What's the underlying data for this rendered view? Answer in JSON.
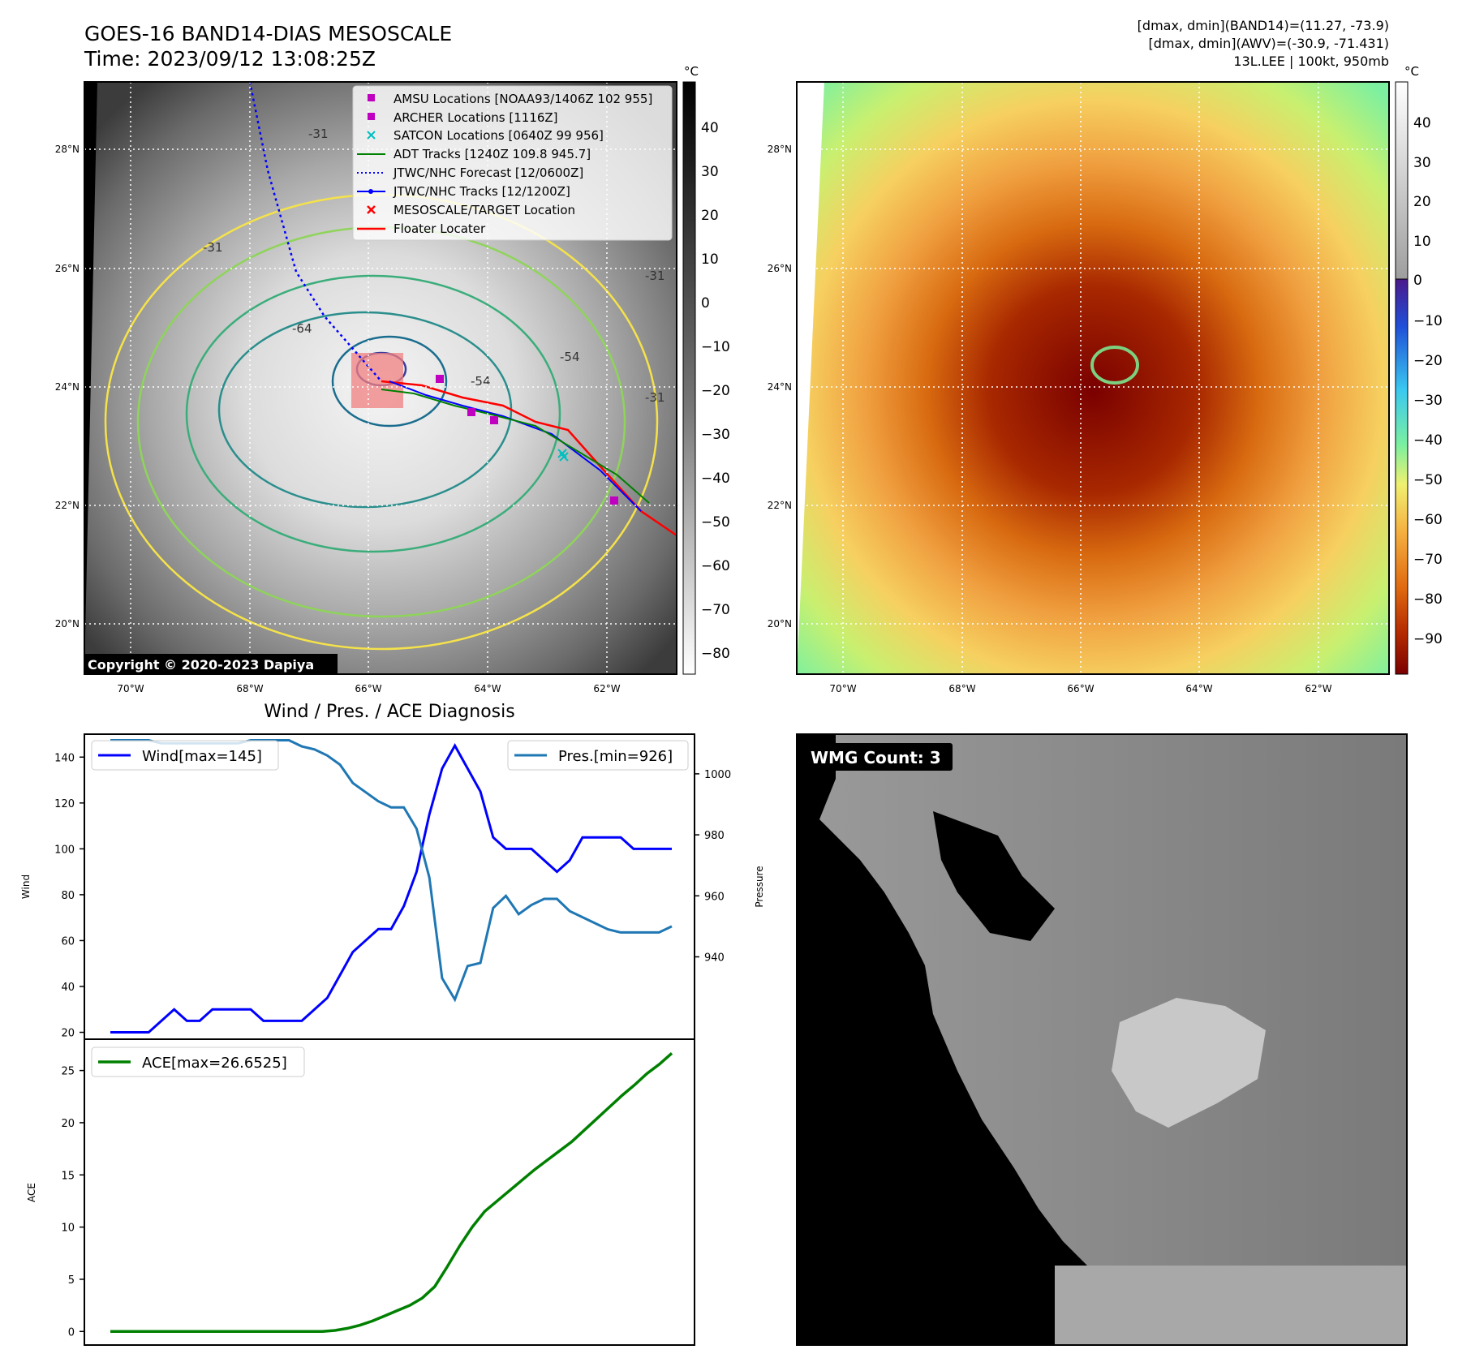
{
  "header": {
    "title_line1": "GOES-16 BAND14-DIAS MESOSCALE",
    "title_line2": "Time: 2023/09/12 13:08:25Z",
    "info_line1": "[dmax, dmin](BAND14)=(11.27, -73.9)",
    "info_line2": "[dmax, dmin](AWV)=(-30.9, -71.431)",
    "info_line3": "13L.LEE | 100kt, 950mb"
  },
  "map_axes": {
    "lon_ticks": [
      "70°W",
      "68°W",
      "66°W",
      "64°W",
      "62°W"
    ],
    "lat_ticks": [
      "28°N",
      "26°N",
      "24°N",
      "22°N",
      "20°N"
    ]
  },
  "ir_panel": {
    "copyright": "Copyright © 2020-2023 Dapiya",
    "colorbar_unit": "°C",
    "colorbar_ticks": [
      "40",
      "30",
      "20",
      "10",
      "0",
      "−10",
      "−20",
      "−30",
      "−40",
      "−50",
      "−60",
      "−70",
      "−80"
    ],
    "contour_labels": [
      "-31",
      "-31",
      "-31",
      "-31",
      "-54",
      "-54",
      "-64"
    ],
    "legend": [
      {
        "label": "AMSU Locations [NOAA93/1406Z 102 955]",
        "color": "#c000c0",
        "marker": "square"
      },
      {
        "label": "ARCHER Locations [1116Z]",
        "color": "#c000c0",
        "marker": "square"
      },
      {
        "label": "SATCON Locations [0640Z 99 956]",
        "color": "#00c0c0",
        "marker": "x"
      },
      {
        "label": "ADT Tracks [1240Z 109.8 945.7]",
        "color": "#008000",
        "marker": "line"
      },
      {
        "label": "JTWC/NHC Forecast [12/0600Z]",
        "color": "#0000ff",
        "marker": "dotted"
      },
      {
        "label": "JTWC/NHC Tracks [12/1200Z]",
        "color": "#0000ff",
        "marker": "line-dot"
      },
      {
        "label": "MESOSCALE/TARGET Location",
        "color": "#ff0000",
        "marker": "x"
      },
      {
        "label": "Floater Locater",
        "color": "#ff0000",
        "marker": "line"
      }
    ]
  },
  "awv_panel": {
    "colorbar_unit": "°C",
    "colorbar_ticks": [
      "40",
      "30",
      "20",
      "10",
      "0",
      "−10",
      "−20",
      "−30",
      "−40",
      "−50",
      "−60",
      "−70",
      "−80",
      "−90"
    ]
  },
  "wmg_panel": {
    "label": "WMG Count: 3"
  },
  "colors": {
    "wind": "#0000ff",
    "pressure": "#1f77b4",
    "ace": "#008000"
  },
  "chart_data": [
    {
      "type": "line",
      "title": "Wind / Pres. / ACE Diagnosis",
      "ylabel": "Wind",
      "ylabel_right": "Pressure",
      "ylim": [
        17,
        150
      ],
      "ylim_right": [
        913,
        1013
      ],
      "yticks": [
        20,
        40,
        60,
        80,
        100,
        120,
        140
      ],
      "yticks_right": [
        940,
        960,
        980,
        1000
      ],
      "legend_placement": [
        "upper-left",
        "upper-right"
      ],
      "series": [
        {
          "name": "Wind[max=145]",
          "axis": "left",
          "values": [
            20,
            20,
            20,
            20,
            25,
            30,
            25,
            25,
            30,
            30,
            30,
            30,
            25,
            25,
            25,
            25,
            30,
            35,
            45,
            55,
            60,
            65,
            65,
            75,
            90,
            115,
            135,
            145,
            135,
            125,
            105,
            100,
            100,
            100,
            95,
            90,
            95,
            105,
            105,
            105,
            105,
            100,
            100,
            100,
            100
          ]
        },
        {
          "name": "Pres.[min=926]",
          "axis": "right",
          "values": [
            1011,
            1011,
            1011,
            1011,
            1010,
            1010,
            1010,
            1010,
            1010,
            1010,
            1010,
            1011,
            1011,
            1011,
            1011,
            1009,
            1008,
            1006,
            1003,
            997,
            994,
            991,
            989,
            989,
            982,
            966,
            933,
            926,
            937,
            938,
            956,
            960,
            954,
            957,
            959,
            959,
            955,
            953,
            951,
            949,
            948,
            948,
            948,
            948,
            950
          ]
        }
      ]
    },
    {
      "type": "line",
      "ylabel": "ACE",
      "ylim": [
        -1.3,
        28
      ],
      "yticks": [
        0,
        5,
        10,
        15,
        20,
        25
      ],
      "legend_placement": "upper-left",
      "series": [
        {
          "name": "ACE[max=26.6525]",
          "values": [
            0,
            0,
            0,
            0,
            0,
            0,
            0,
            0,
            0,
            0,
            0,
            0,
            0,
            0,
            0,
            0,
            0,
            0,
            0.1,
            0.3,
            0.6,
            1.0,
            1.5,
            2.0,
            2.5,
            3.2,
            4.3,
            6.2,
            8.2,
            10.0,
            11.5,
            12.5,
            13.5,
            14.5,
            15.5,
            16.4,
            17.3,
            18.2,
            19.3,
            20.4,
            21.5,
            22.6,
            23.6,
            24.7,
            25.6,
            26.6525
          ]
        }
      ]
    }
  ]
}
